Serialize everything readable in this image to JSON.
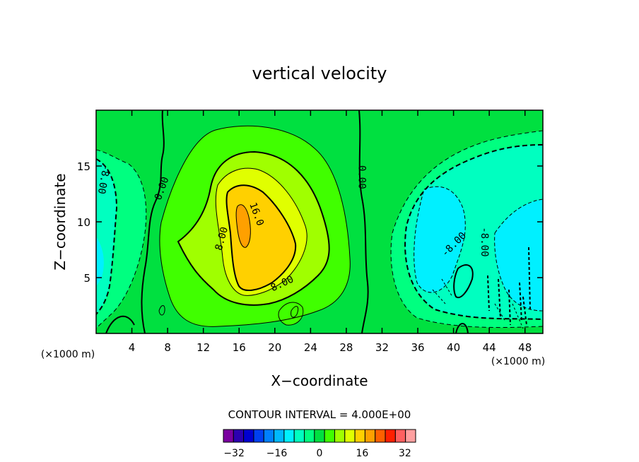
{
  "chart_data": {
    "type": "contour",
    "title": "vertical velocity",
    "xlabel": "X−coordinate",
    "ylabel": "Z−coordinate",
    "x_unit": "(×1000 m)",
    "y_unit": "(×1000 m)",
    "xlim": [
      0,
      50
    ],
    "ylim": [
      0,
      20
    ],
    "x_ticks": [
      4,
      8,
      12,
      16,
      20,
      24,
      28,
      32,
      36,
      40,
      44,
      48
    ],
    "y_ticks": [
      5,
      10,
      15
    ],
    "contour_interval_text": "CONTOUR INTERVAL = 4.000E+00",
    "contour_labels": [
      {
        "text": "0.00",
        "x": 29.8,
        "y": 14.0,
        "angle": 90
      },
      {
        "text": "0.00",
        "x": 7.3,
        "y": 13.0,
        "angle": -70
      },
      {
        "text": "-8.00",
        "x": 0.9,
        "y": 13.8,
        "angle": 100
      },
      {
        "text": "16.0",
        "x": 18.0,
        "y": 10.7,
        "angle": 70
      },
      {
        "text": "8.00",
        "x": 14.0,
        "y": 8.5,
        "angle": -75
      },
      {
        "text": "8.00",
        "x": 20.8,
        "y": 4.5,
        "angle": -25
      },
      {
        "text": "-8.00",
        "x": 40.0,
        "y": 8.0,
        "angle": -45
      },
      {
        "text": "-8.00",
        "x": 43.5,
        "y": 8.2,
        "angle": 90
      }
    ],
    "colorbar": {
      "levels": [
        -36,
        -32,
        -28,
        -24,
        -20,
        -16,
        -12,
        -8,
        -4,
        0,
        4,
        8,
        12,
        16,
        20,
        24,
        28,
        32,
        36
      ],
      "colors": [
        "#7a00a0",
        "#2c00b0",
        "#0000d0",
        "#0040f0",
        "#0080ff",
        "#00b8ff",
        "#00f0ff",
        "#00ffc0",
        "#00ff80",
        "#00e040",
        "#40ff00",
        "#a0ff00",
        "#e0ff00",
        "#ffd000",
        "#ffa000",
        "#ff6000",
        "#ff2000",
        "#ff6060",
        "#ffa0a0"
      ],
      "tick_labels": [
        "−32",
        "−16",
        "0",
        "16",
        "32"
      ],
      "tick_values": [
        -32,
        -16,
        0,
        16,
        32
      ]
    }
  }
}
